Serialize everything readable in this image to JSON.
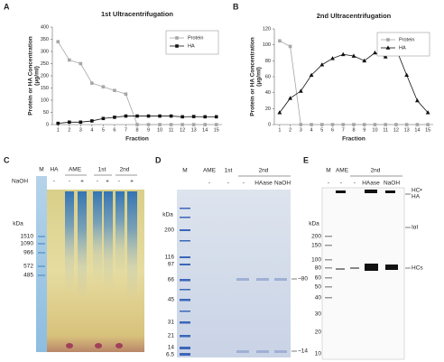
{
  "chart_data": [
    {
      "type": "line",
      "panel": "A",
      "title": "1st Ultracentrifugation",
      "xlabel": "Fraction",
      "ylabel": [
        "Protein or HA Concentration",
        "(μg/ml)"
      ],
      "x": [
        1,
        2,
        3,
        4,
        5,
        6,
        7,
        8,
        9,
        10,
        11,
        12,
        13,
        14,
        15
      ],
      "xlim": [
        0.5,
        15.5
      ],
      "xticks": [
        1,
        2,
        3,
        4,
        5,
        6,
        7,
        8,
        9,
        10,
        11,
        12,
        13,
        14,
        15
      ],
      "ylim": [
        0,
        400
      ],
      "yticks": [
        0,
        50,
        100,
        150,
        200,
        250,
        300,
        350,
        400
      ],
      "legend": "upper right",
      "series": [
        {
          "name": "Protein",
          "color": "#a6a6a6",
          "marker": "square",
          "values": [
            340,
            265,
            250,
            170,
            155,
            140,
            125,
            0,
            0,
            0,
            0,
            0,
            0,
            0,
            0
          ]
        },
        {
          "name": "HA",
          "color": "#111111",
          "marker": "square",
          "values": [
            5,
            10,
            10,
            15,
            25,
            30,
            35,
            35,
            35,
            35,
            35,
            32,
            33,
            32,
            32
          ]
        }
      ]
    },
    {
      "type": "line",
      "panel": "B",
      "title": "2nd Ultracentrifugation",
      "xlabel": "Fraction",
      "ylabel": [
        "Protein or HA Concentration",
        "(μg/ml)"
      ],
      "x": [
        1,
        2,
        3,
        4,
        5,
        6,
        7,
        8,
        9,
        10,
        11,
        12,
        13,
        14,
        15
      ],
      "xlim": [
        0.5,
        15.5
      ],
      "xticks": [
        1,
        2,
        3,
        4,
        5,
        6,
        7,
        8,
        9,
        10,
        11,
        12,
        13,
        14,
        15
      ],
      "ylim": [
        0,
        120
      ],
      "yticks": [
        0,
        20,
        40,
        60,
        80,
        100,
        120
      ],
      "legend": "upper right",
      "series": [
        {
          "name": "Protein",
          "color": "#a6a6a6",
          "marker": "square",
          "values": [
            105,
            98,
            0,
            0,
            0,
            0,
            0,
            0,
            0,
            0,
            0,
            0,
            0,
            0,
            0
          ]
        },
        {
          "name": "HA",
          "color": "#111111",
          "marker": "triangle",
          "values": [
            15,
            33,
            42,
            62,
            75,
            83,
            88,
            86,
            80,
            90,
            85,
            95,
            62,
            30,
            15
          ]
        }
      ]
    }
  ],
  "gels": {
    "c": {
      "panel": "C",
      "lanes": [
        "M",
        "HA",
        "AME",
        "1st",
        "2nd"
      ],
      "treatment": "NaOH",
      "signs": [
        "-",
        "-",
        "+",
        "-",
        "+",
        "-",
        "+"
      ],
      "unit": "kDa",
      "markers": [
        "1510",
        "1090",
        "966",
        "572",
        "485"
      ]
    },
    "d": {
      "panel": "D",
      "lanes": [
        "M",
        "AME",
        "1st",
        "2nd"
      ],
      "signs": [
        "-",
        "-",
        "-",
        "HAase",
        "NaOH"
      ],
      "unit": "kDa",
      "markers": [
        "200",
        "116",
        "97",
        "66",
        "45",
        "31",
        "21",
        "14",
        "6.5"
      ],
      "arrows": [
        "~80",
        "~14"
      ]
    },
    "e": {
      "panel": "E",
      "lanes": [
        "M",
        "AME",
        "2nd"
      ],
      "signs": [
        "-",
        "-",
        "-",
        "HAase",
        "NaOH"
      ],
      "unit": "kDa",
      "markers": [
        "200",
        "150",
        "100",
        "80",
        "60",
        "50",
        "40",
        "30",
        "20",
        "10"
      ],
      "arrows": [
        "HC•",
        "HA",
        "IαI",
        "HCs"
      ]
    }
  }
}
